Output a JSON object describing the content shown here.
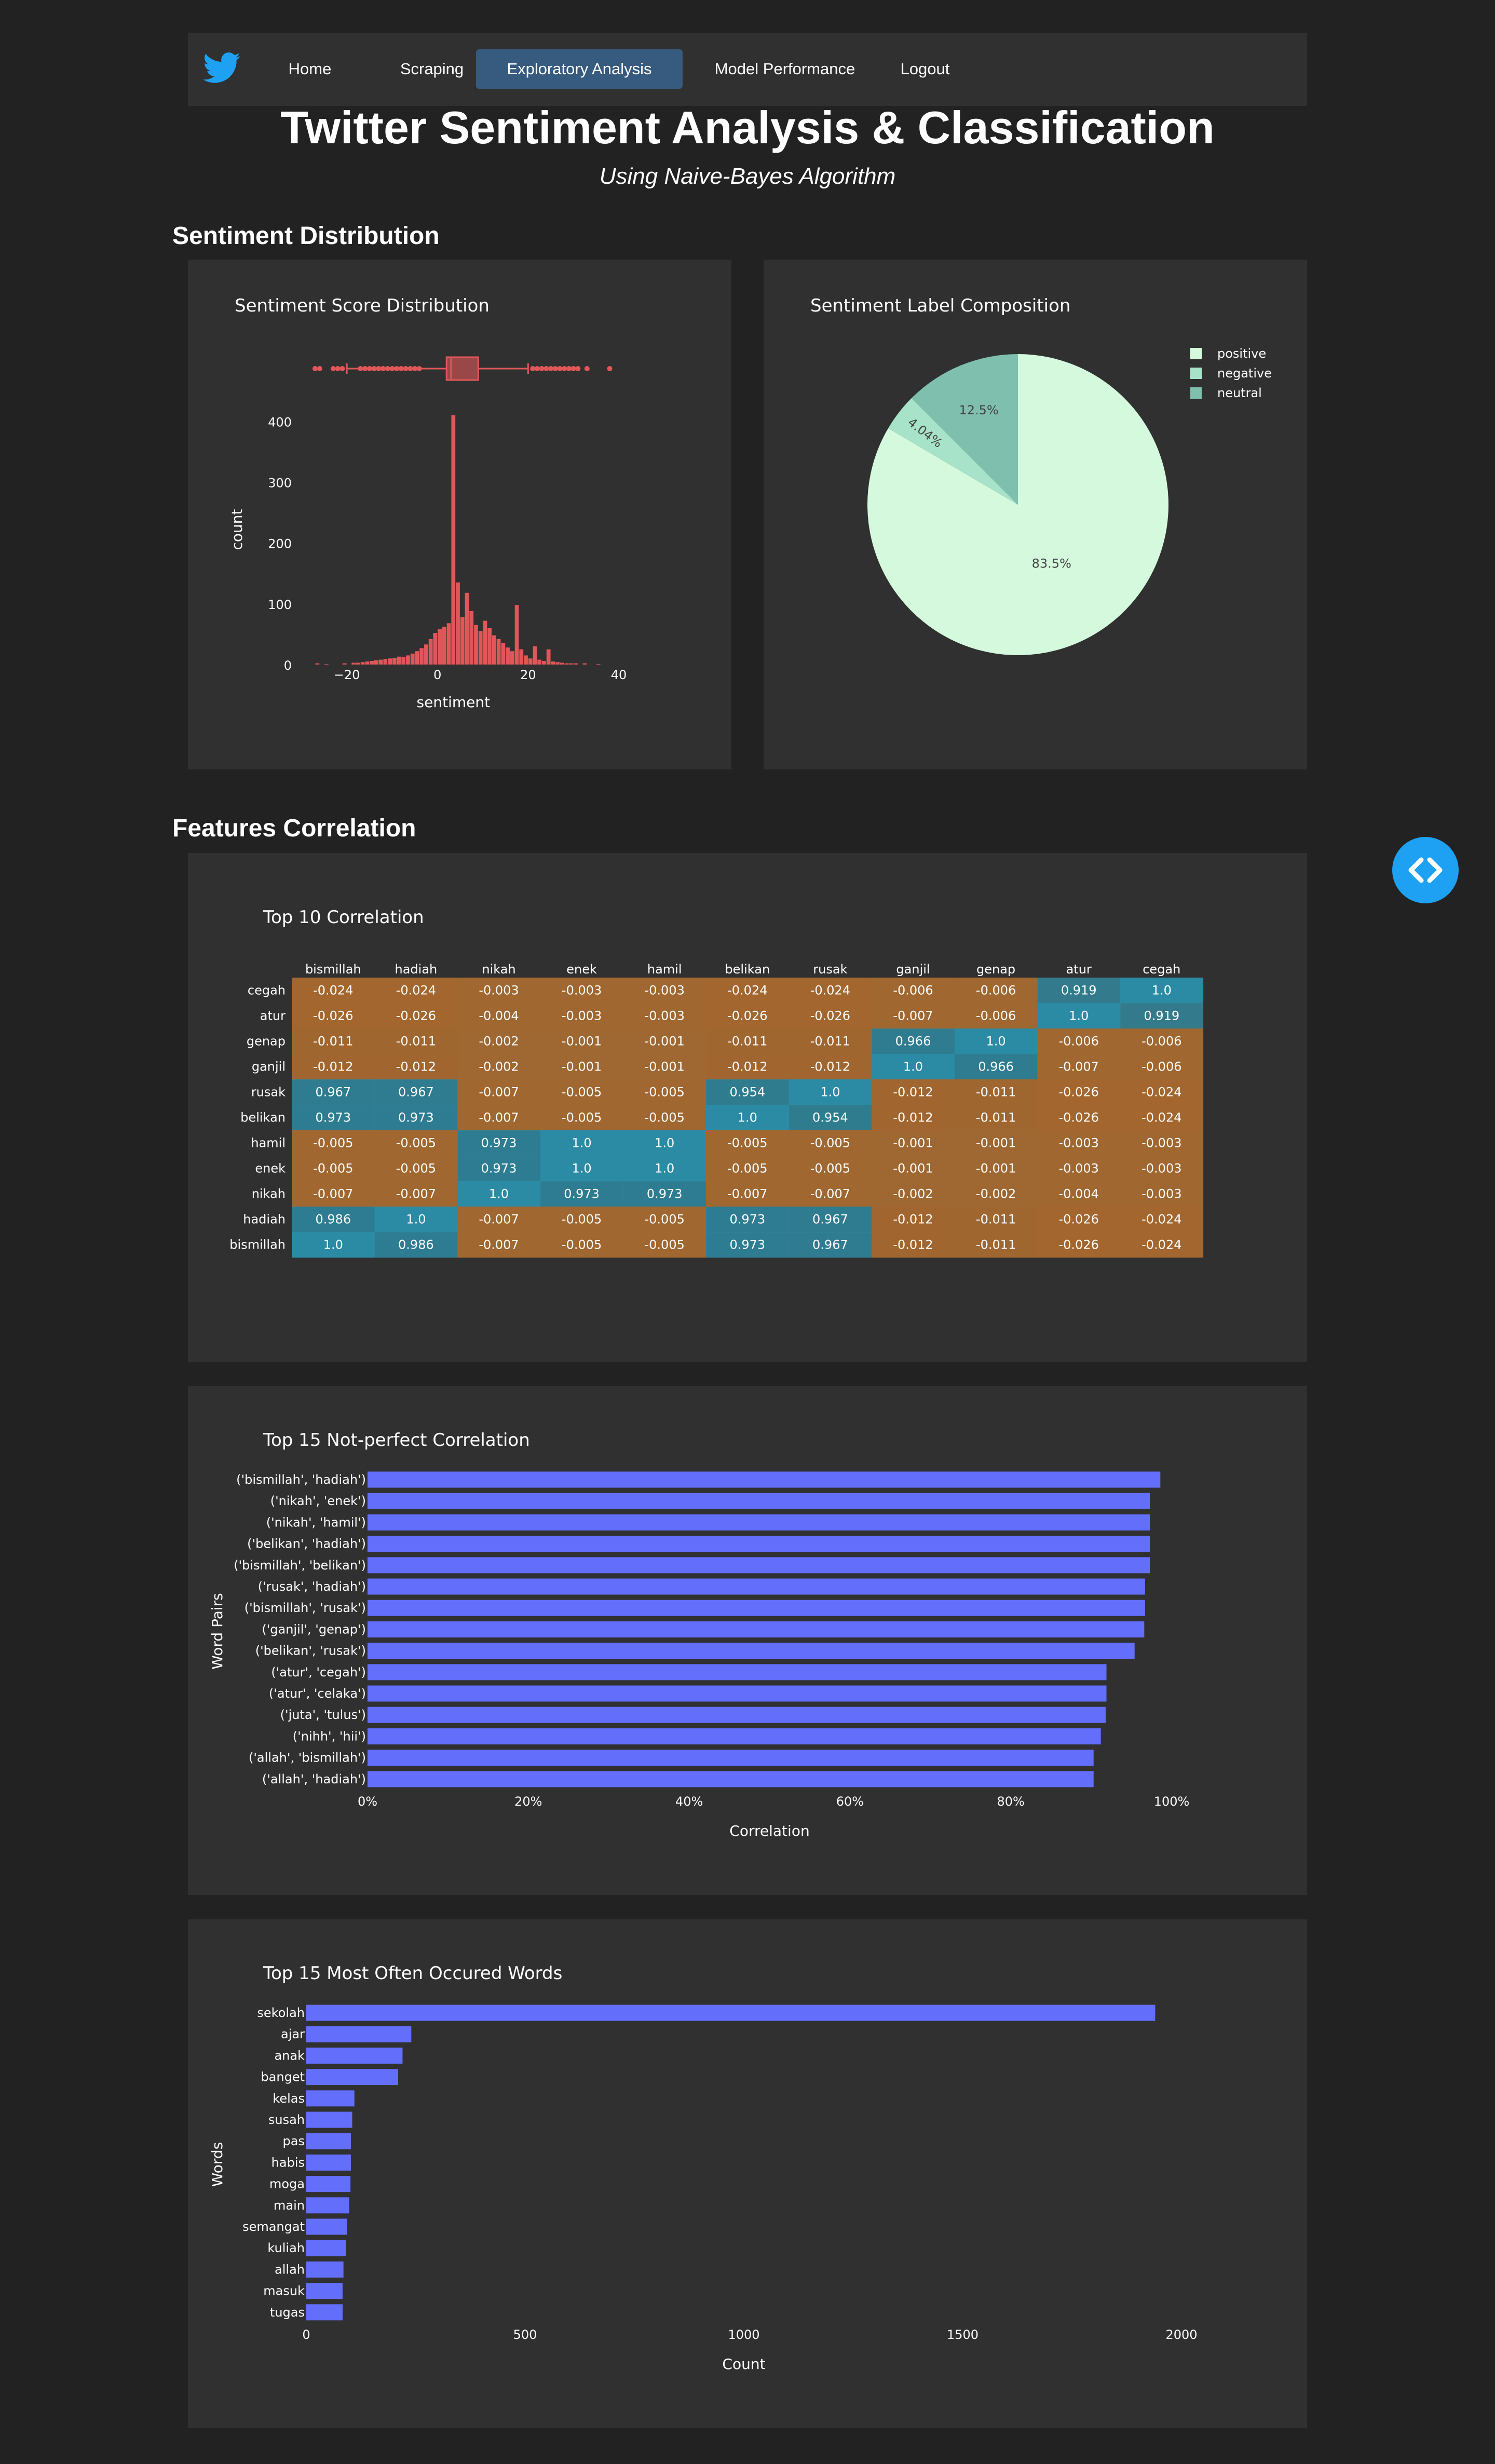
{
  "nav": {
    "items": [
      {
        "label": "Home"
      },
      {
        "label": "Scraping"
      },
      {
        "label": "Exploratory Analysis"
      },
      {
        "label": "Model Performance"
      },
      {
        "label": "Logout"
      }
    ],
    "active_index": 2,
    "logo_icon": "twitter-bird-icon"
  },
  "header": {
    "title": "Twitter Sentiment Analysis & Classification",
    "subtitle": "Using Naive-Bayes Algorithm"
  },
  "sections": {
    "sentiment_distribution": "Sentiment Distribution",
    "features_correlation": "Features Correlation"
  },
  "colors": {
    "page_bg": "#222222",
    "card_bg": "#303030",
    "nav_active": "#375a7f",
    "hist_bar": "#e15759",
    "bar_blue": "#636efa",
    "pie_positive": "#d4f9dd",
    "pie_negative": "#a7e3c8",
    "pie_neutral": "#7fbfae",
    "heat_low": "#a5652b",
    "heat_high": "#2b8ba5",
    "toggle_bg": "#1ea1f2"
  },
  "chart_data": [
    {
      "id": "hist",
      "type": "histogram",
      "title": "Sentiment Score Distribution",
      "xlabel": "sentiment",
      "ylabel": "count",
      "xlim": [
        -27,
        40
      ],
      "ylim": [
        0,
        420
      ],
      "x_ticks": [
        -20,
        0,
        20,
        40
      ],
      "x_tick_labels": [
        "−20",
        "0",
        "20",
        "40"
      ],
      "y_ticks": [
        0,
        100,
        200,
        300,
        400
      ],
      "y_tick_labels": [
        "0",
        "100",
        "200",
        "300",
        "400"
      ],
      "bins": [
        {
          "x": -27,
          "y": 2
        },
        {
          "x": -25,
          "y": 1
        },
        {
          "x": -21,
          "y": 2
        },
        {
          "x": -19,
          "y": 3
        },
        {
          "x": -18,
          "y": 3
        },
        {
          "x": -17,
          "y": 4
        },
        {
          "x": -16,
          "y": 5
        },
        {
          "x": -15,
          "y": 6
        },
        {
          "x": -14,
          "y": 7
        },
        {
          "x": -13,
          "y": 8
        },
        {
          "x": -12,
          "y": 9
        },
        {
          "x": -11,
          "y": 10
        },
        {
          "x": -10,
          "y": 11
        },
        {
          "x": -9,
          "y": 13
        },
        {
          "x": -8,
          "y": 12
        },
        {
          "x": -7,
          "y": 15
        },
        {
          "x": -6,
          "y": 18
        },
        {
          "x": -5,
          "y": 22
        },
        {
          "x": -4,
          "y": 27
        },
        {
          "x": -3,
          "y": 33
        },
        {
          "x": -2,
          "y": 42
        },
        {
          "x": -1,
          "y": 52
        },
        {
          "x": 0,
          "y": 58
        },
        {
          "x": 1,
          "y": 62
        },
        {
          "x": 2,
          "y": 68
        },
        {
          "x": 3,
          "y": 410
        },
        {
          "x": 4,
          "y": 135
        },
        {
          "x": 5,
          "y": 78
        },
        {
          "x": 6,
          "y": 118
        },
        {
          "x": 7,
          "y": 88
        },
        {
          "x": 8,
          "y": 65
        },
        {
          "x": 9,
          "y": 55
        },
        {
          "x": 10,
          "y": 72
        },
        {
          "x": 11,
          "y": 60
        },
        {
          "x": 12,
          "y": 48
        },
        {
          "x": 13,
          "y": 42
        },
        {
          "x": 14,
          "y": 35
        },
        {
          "x": 15,
          "y": 28
        },
        {
          "x": 16,
          "y": 22
        },
        {
          "x": 17,
          "y": 98
        },
        {
          "x": 18,
          "y": 25
        },
        {
          "x": 19,
          "y": 15
        },
        {
          "x": 20,
          "y": 10
        },
        {
          "x": 21,
          "y": 30
        },
        {
          "x": 22,
          "y": 8
        },
        {
          "x": 23,
          "y": 6
        },
        {
          "x": 24,
          "y": 25
        },
        {
          "x": 25,
          "y": 5
        },
        {
          "x": 26,
          "y": 4
        },
        {
          "x": 27,
          "y": 3
        },
        {
          "x": 28,
          "y": 2
        },
        {
          "x": 29,
          "y": 2
        },
        {
          "x": 30,
          "y": 2
        },
        {
          "x": 32,
          "y": 2
        },
        {
          "x": 35,
          "y": 1
        }
      ],
      "box": {
        "min": -20,
        "q1": 2,
        "median": 3,
        "q3": 9,
        "max": 20,
        "outliers": [
          -27,
          -26,
          -23,
          -22,
          -21,
          -17,
          -16,
          -15,
          -14,
          -13,
          -12,
          -11,
          -10,
          -9,
          -8,
          -7,
          -6,
          -5,
          -4,
          21,
          22,
          23,
          24,
          25,
          26,
          27,
          28,
          29,
          30,
          31,
          33,
          38
        ]
      }
    },
    {
      "id": "pie",
      "type": "pie",
      "title": "Sentiment Label Composition",
      "slices": [
        {
          "label": "positive",
          "value": 83.5,
          "text": "83.5%"
        },
        {
          "label": "negative",
          "value": 4.04,
          "text": "4.04%"
        },
        {
          "label": "neutral",
          "value": 12.5,
          "text": "12.5%"
        }
      ],
      "legend": [
        "positive",
        "negative",
        "neutral"
      ]
    },
    {
      "id": "heatmap",
      "type": "heatmap",
      "title": "Top 10 Correlation",
      "columns": [
        "bismillah",
        "hadiah",
        "nikah",
        "enek",
        "hamil",
        "belikan",
        "rusak",
        "ganjil",
        "genap",
        "atur",
        "cegah"
      ],
      "rows": [
        {
          "label": "cegah",
          "values": [
            "-0.024",
            "-0.024",
            "-0.003",
            "-0.003",
            "-0.003",
            "-0.024",
            "-0.024",
            "-0.006",
            "-0.006",
            "0.919",
            "1.0"
          ]
        },
        {
          "label": "atur",
          "values": [
            "-0.026",
            "-0.026",
            "-0.004",
            "-0.003",
            "-0.003",
            "-0.026",
            "-0.026",
            "-0.007",
            "-0.006",
            "1.0",
            "0.919"
          ]
        },
        {
          "label": "genap",
          "values": [
            "-0.011",
            "-0.011",
            "-0.002",
            "-0.001",
            "-0.001",
            "-0.011",
            "-0.011",
            "0.966",
            "1.0",
            "-0.006",
            "-0.006"
          ]
        },
        {
          "label": "ganjil",
          "values": [
            "-0.012",
            "-0.012",
            "-0.002",
            "-0.001",
            "-0.001",
            "-0.012",
            "-0.012",
            "1.0",
            "0.966",
            "-0.007",
            "-0.006"
          ]
        },
        {
          "label": "rusak",
          "values": [
            "0.967",
            "0.967",
            "-0.007",
            "-0.005",
            "-0.005",
            "0.954",
            "1.0",
            "-0.012",
            "-0.011",
            "-0.026",
            "-0.024"
          ]
        },
        {
          "label": "belikan",
          "values": [
            "0.973",
            "0.973",
            "-0.007",
            "-0.005",
            "-0.005",
            "1.0",
            "0.954",
            "-0.012",
            "-0.011",
            "-0.026",
            "-0.024"
          ]
        },
        {
          "label": "hamil",
          "values": [
            "-0.005",
            "-0.005",
            "0.973",
            "1.0",
            "1.0",
            "-0.005",
            "-0.005",
            "-0.001",
            "-0.001",
            "-0.003",
            "-0.003"
          ]
        },
        {
          "label": "enek",
          "values": [
            "-0.005",
            "-0.005",
            "0.973",
            "1.0",
            "1.0",
            "-0.005",
            "-0.005",
            "-0.001",
            "-0.001",
            "-0.003",
            "-0.003"
          ]
        },
        {
          "label": "nikah",
          "values": [
            "-0.007",
            "-0.007",
            "1.0",
            "0.973",
            "0.973",
            "-0.007",
            "-0.007",
            "-0.002",
            "-0.002",
            "-0.004",
            "-0.003"
          ]
        },
        {
          "label": "hadiah",
          "values": [
            "0.986",
            "1.0",
            "-0.007",
            "-0.005",
            "-0.005",
            "0.973",
            "0.967",
            "-0.012",
            "-0.011",
            "-0.026",
            "-0.024"
          ]
        },
        {
          "label": "bismillah",
          "values": [
            "1.0",
            "0.986",
            "-0.007",
            "-0.005",
            "-0.005",
            "0.973",
            "0.967",
            "-0.012",
            "-0.011",
            "-0.026",
            "-0.024"
          ]
        }
      ]
    },
    {
      "id": "corr_bar",
      "type": "bar",
      "orientation": "horizontal",
      "title": "Top 15 Not-perfect Correlation",
      "xlabel": "Correlation",
      "ylabel": "Word Pairs",
      "xlim": [
        0,
        1.0
      ],
      "x_ticks": [
        0,
        0.2,
        0.4,
        0.6,
        0.8,
        1.0
      ],
      "x_tick_labels": [
        "0%",
        "20%",
        "40%",
        "60%",
        "80%",
        "100%"
      ],
      "categories": [
        "('bismillah', 'hadiah')",
        "('nikah', 'enek')",
        "('nikah', 'hamil')",
        "('belikan', 'hadiah')",
        "('bismillah', 'belikan')",
        "('rusak', 'hadiah')",
        "('bismillah', 'rusak')",
        "('ganjil', 'genap')",
        "('belikan', 'rusak')",
        "('atur', 'cegah')",
        "('atur', 'celaka')",
        "('juta', 'tulus')",
        "('nihh', 'hii')",
        "('allah', 'bismillah')",
        "('allah', 'hadiah')"
      ],
      "values": [
        0.986,
        0.973,
        0.973,
        0.973,
        0.973,
        0.967,
        0.967,
        0.966,
        0.954,
        0.919,
        0.919,
        0.918,
        0.912,
        0.903,
        0.903
      ]
    },
    {
      "id": "words_bar",
      "type": "bar",
      "orientation": "horizontal",
      "title": "Top 15 Most Often Occured Words",
      "xlabel": "Count",
      "ylabel": "Words",
      "xlim": [
        0,
        2000
      ],
      "x_ticks": [
        0,
        500,
        1000,
        1500,
        2000
      ],
      "x_tick_labels": [
        "0",
        "500",
        "1000",
        "1500",
        "2000"
      ],
      "categories": [
        "sekolah",
        "ajar",
        "anak",
        "banget",
        "kelas",
        "susah",
        "pas",
        "habis",
        "moga",
        "main",
        "semangat",
        "kuliah",
        "allah",
        "masuk",
        "tugas"
      ],
      "values": [
        1940,
        240,
        220,
        210,
        110,
        105,
        102,
        102,
        101,
        98,
        93,
        91,
        85,
        83,
        83
      ]
    }
  ]
}
